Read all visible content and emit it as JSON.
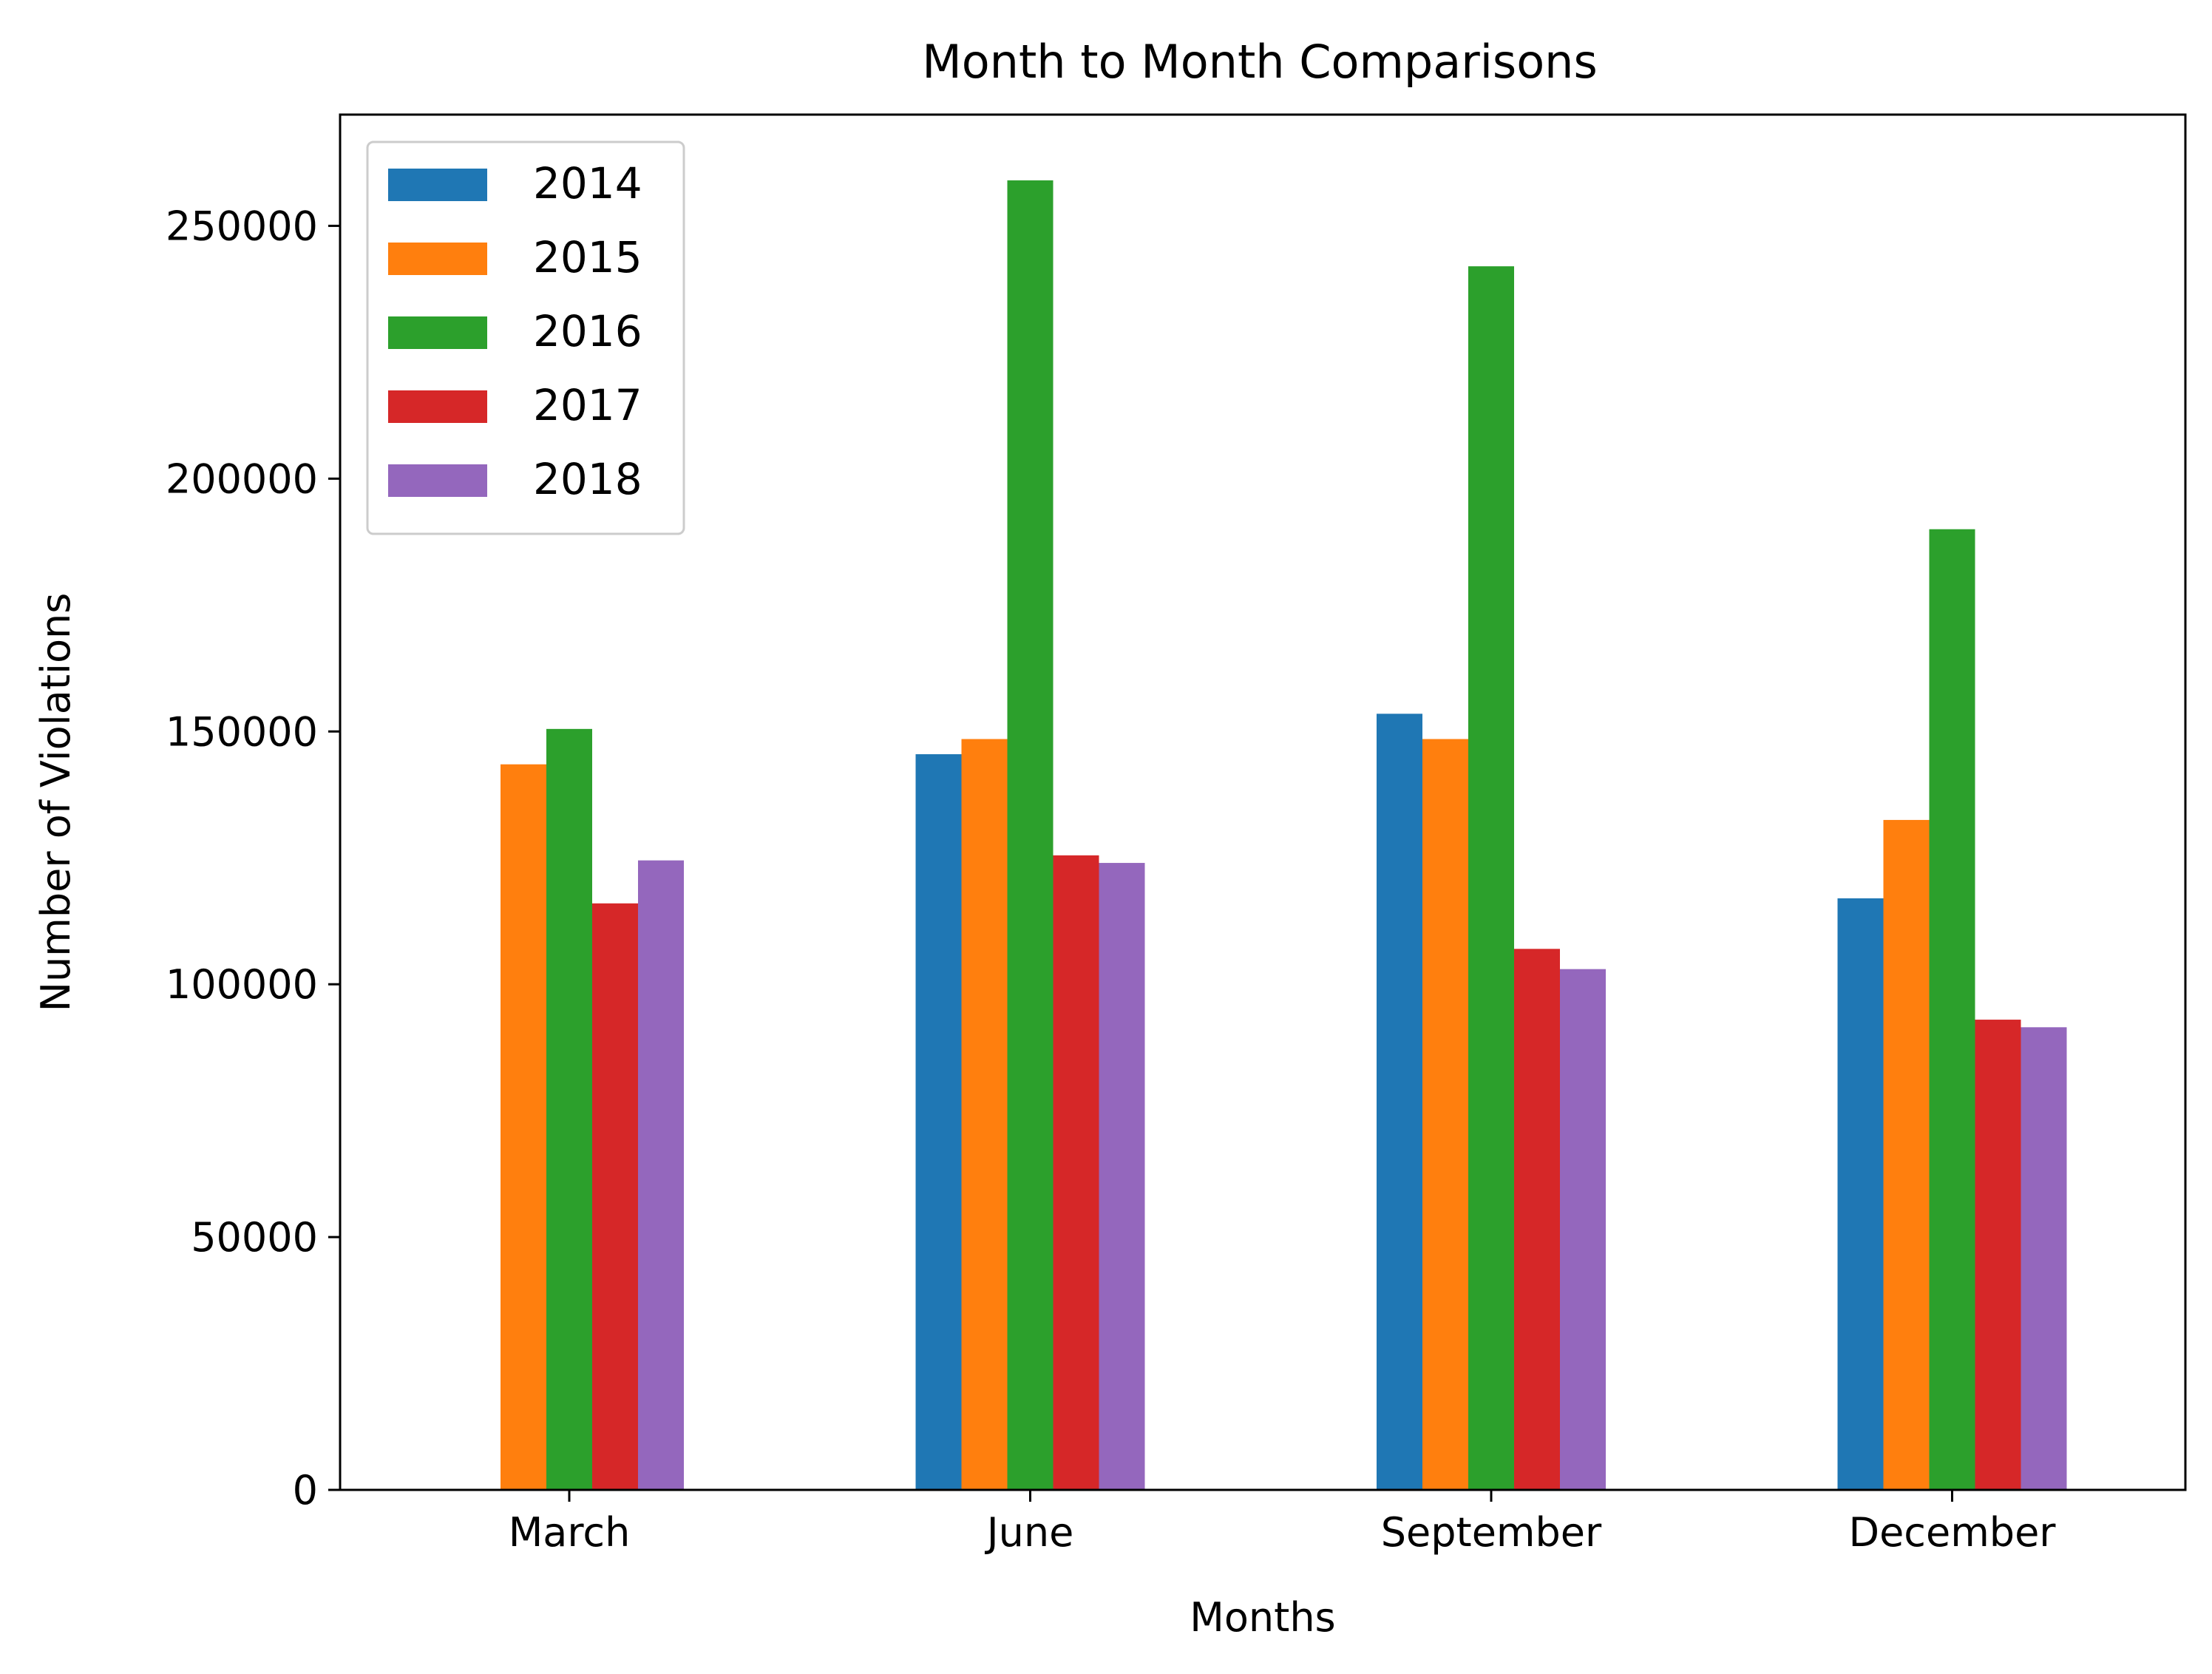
{
  "chart_data": {
    "type": "bar",
    "title": "Month to Month Comparisons",
    "xlabel": "Months",
    "ylabel": "Number of Violations",
    "categories": [
      "March",
      "June",
      "September",
      "December"
    ],
    "ylim": [
      0,
      272000
    ],
    "yticks": [
      0,
      50000,
      100000,
      150000,
      200000,
      250000
    ],
    "ytick_labels": [
      "0",
      "50000",
      "100000",
      "150000",
      "200000",
      "250000"
    ],
    "grid": false,
    "legend_position": "top-left",
    "series": [
      {
        "name": "2014",
        "color": "#1f77b4",
        "values": [
          0,
          145500,
          153500,
          117000
        ]
      },
      {
        "name": "2015",
        "color": "#ff7f0e",
        "values": [
          143500,
          148500,
          148500,
          132500
        ]
      },
      {
        "name": "2016",
        "color": "#2ca02c",
        "values": [
          150500,
          259000,
          242000,
          190000
        ]
      },
      {
        "name": "2017",
        "color": "#d62728",
        "values": [
          116000,
          125500,
          107000,
          93000
        ]
      },
      {
        "name": "2018",
        "color": "#9467bd",
        "values": [
          124500,
          124000,
          103000,
          91500
        ]
      }
    ]
  }
}
